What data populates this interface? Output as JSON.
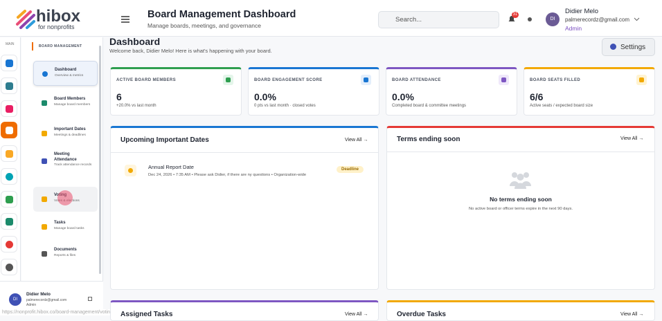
{
  "logo": {
    "name": "hibox",
    "tagline": "for nonprofits"
  },
  "header": {
    "title": "Board Management Dashboard",
    "subtitle": "Manage boards, meetings, and governance",
    "search": "Search...",
    "badge": "31",
    "avatar": "DI",
    "user": "Didier Melo",
    "email": "palmerecordz@gmail.com",
    "role": "Admin"
  },
  "rail": {
    "label": "MAIN"
  },
  "sidebar": {
    "section": "BOARD MANAGEMENT",
    "items": [
      {
        "title": "Dashboard",
        "sub": "Overview & metrics"
      },
      {
        "title": "Board Members",
        "sub": "Manage board members"
      },
      {
        "title": "Important Dates",
        "sub": "Meetings & deadlines"
      },
      {
        "title": "Meeting Attendance",
        "sub": "Track attendance records"
      },
      {
        "title": "Voting",
        "sub": "Votes & elections"
      },
      {
        "title": "Tasks",
        "sub": "Manage board tasks"
      },
      {
        "title": "Documents",
        "sub": "Reports & files"
      }
    ],
    "footer": {
      "avatar": "DI",
      "name": "Didier Melo",
      "email": "palmerecordz@gmail.com",
      "role": "Admin"
    }
  },
  "status_url": "https://nonprofit.hibox.co/board-management/voting",
  "main": {
    "title": "Dashboard",
    "welcome": "Welcome back, Didier Melo! Here is what's happening with your board.",
    "settings": "Settings"
  },
  "cards": [
    {
      "label": "ACTIVE BOARD MEMBERS",
      "value": "6",
      "note": "+20.0% vs last month"
    },
    {
      "label": "BOARD ENGAGEMENT SCORE",
      "value": "0.0%",
      "note": "0 pts vs last month · closed votes"
    },
    {
      "label": "BOARD ATTENDANCE",
      "value": "0.0%",
      "note": "Completed board & committee meetings"
    },
    {
      "label": "BOARD SEATS FILLED",
      "value": "6/6",
      "note": "Active seats / expected board size"
    }
  ],
  "panels": {
    "dates": {
      "title": "Upcoming Important Dates",
      "view_all": "View All →",
      "event": {
        "name": "Annual Report Date",
        "details": "Dec 24, 2026 • 7:35 AM • Please ask Didier, if there are ny questions • Organization-wide",
        "tag": "Deadline"
      }
    },
    "terms": {
      "title": "Terms ending soon",
      "view_all": "View All →",
      "empty_title": "No terms ending soon",
      "empty_text": "No active board or officer terms expire in the next 90 days."
    },
    "tasks": {
      "title": "Assigned Tasks",
      "view_all": "View All →"
    },
    "overdue": {
      "title": "Overdue Tasks",
      "view_all": "View All →"
    }
  }
}
